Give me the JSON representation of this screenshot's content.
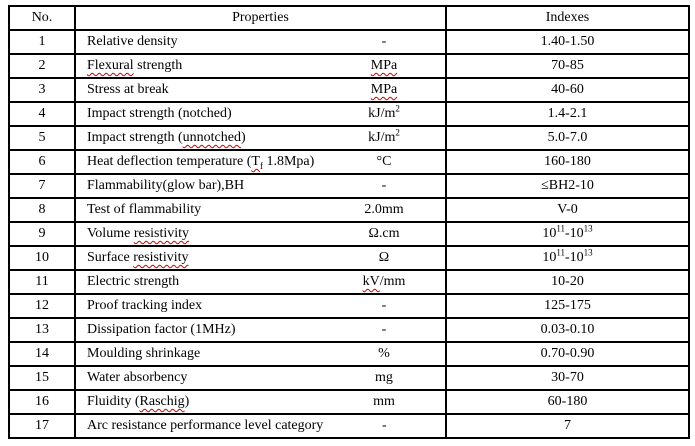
{
  "table": {
    "headers": {
      "no": "No.",
      "properties": "Properties",
      "indexes": "Indexes"
    },
    "squiggle_color": "#cc0000",
    "border_color": "#000000",
    "text_color": "#000000",
    "rows": [
      {
        "no": "1",
        "property": [
          {
            "v": "Relative density"
          }
        ],
        "unit": [
          {
            "v": "-"
          }
        ],
        "index": [
          {
            "v": "1.40-1.50"
          }
        ]
      },
      {
        "no": "2",
        "property": [
          {
            "v": "Flexural",
            "sq": true
          },
          {
            "v": " strength"
          }
        ],
        "unit": [
          {
            "v": "MPa",
            "sq": true
          }
        ],
        "index": [
          {
            "v": "70-85"
          }
        ]
      },
      {
        "no": "3",
        "property": [
          {
            "v": "Stress at break"
          }
        ],
        "unit": [
          {
            "v": "MPa",
            "sq": true
          }
        ],
        "index": [
          {
            "v": "40-60"
          }
        ]
      },
      {
        "no": "4",
        "property": [
          {
            "v": "Impact strength (notched)"
          }
        ],
        "unit": [
          {
            "v": "kJ/m"
          },
          {
            "v": "2",
            "s": "sup"
          }
        ],
        "index": [
          {
            "v": "1.4-2.1"
          }
        ]
      },
      {
        "no": "5",
        "property": [
          {
            "v": "Impact strength ("
          },
          {
            "v": "unnotched",
            "sq": true
          },
          {
            "v": ")"
          }
        ],
        "unit": [
          {
            "v": "kJ/m"
          },
          {
            "v": "2",
            "s": "sup"
          }
        ],
        "index": [
          {
            "v": "5.0-7.0"
          }
        ]
      },
      {
        "no": "6",
        "property": [
          {
            "v": "Heat deflection temperature ("
          },
          {
            "v": "T",
            "sq": true
          },
          {
            "v": "f",
            "s": "sub",
            "sq": true
          },
          {
            "v": " 1.8Mpa)"
          }
        ],
        "unit": [
          {
            "v": "°C"
          }
        ],
        "index": [
          {
            "v": "160-180"
          }
        ]
      },
      {
        "no": "7",
        "property": [
          {
            "v": "Flammability(glow bar),BH"
          }
        ],
        "unit": [
          {
            "v": "-"
          }
        ],
        "index": [
          {
            "v": "≤BH2-10"
          }
        ]
      },
      {
        "no": "8",
        "property": [
          {
            "v": "Test of flammability"
          }
        ],
        "unit": [
          {
            "v": "2.0mm"
          }
        ],
        "index": [
          {
            "v": "V-0"
          }
        ]
      },
      {
        "no": "9",
        "property": [
          {
            "v": "Volume "
          },
          {
            "v": "resistivity",
            "sq": true
          }
        ],
        "unit": [
          {
            "v": "Ω.cm"
          }
        ],
        "index": [
          {
            "v": "10"
          },
          {
            "v": "11",
            "s": "sup"
          },
          {
            "v": "-10"
          },
          {
            "v": "13",
            "s": "sup"
          }
        ]
      },
      {
        "no": "10",
        "property": [
          {
            "v": "Surface "
          },
          {
            "v": "resistivity",
            "sq": true
          }
        ],
        "unit": [
          {
            "v": "Ω"
          }
        ],
        "index": [
          {
            "v": "10"
          },
          {
            "v": "11",
            "s": "sup"
          },
          {
            "v": "-10"
          },
          {
            "v": "13",
            "s": "sup"
          }
        ]
      },
      {
        "no": "11",
        "property": [
          {
            "v": "Electric strength"
          }
        ],
        "unit": [
          {
            "v": "kV",
            "sq": true
          },
          {
            "v": "/mm"
          }
        ],
        "index": [
          {
            "v": "10-20"
          }
        ]
      },
      {
        "no": "12",
        "property": [
          {
            "v": "Proof tracking index"
          }
        ],
        "unit": [
          {
            "v": "-"
          }
        ],
        "index": [
          {
            "v": "125-175"
          }
        ]
      },
      {
        "no": "13",
        "property": [
          {
            "v": "Dissipation factor (1MHz)"
          }
        ],
        "unit": [
          {
            "v": "-"
          }
        ],
        "index": [
          {
            "v": "0.03-0.10"
          }
        ]
      },
      {
        "no": "14",
        "property": [
          {
            "v": "Moulding shrinkage"
          }
        ],
        "unit": [
          {
            "v": "%"
          }
        ],
        "index": [
          {
            "v": "0.70-0.90"
          }
        ]
      },
      {
        "no": "15",
        "property": [
          {
            "v": "Water absorbency"
          }
        ],
        "unit": [
          {
            "v": "mg"
          }
        ],
        "index": [
          {
            "v": "30-70"
          }
        ]
      },
      {
        "no": "16",
        "property": [
          {
            "v": "Fluidity ("
          },
          {
            "v": "Raschig",
            "sq": true
          },
          {
            "v": ")"
          }
        ],
        "unit": [
          {
            "v": "mm"
          }
        ],
        "index": [
          {
            "v": "60-180"
          }
        ]
      },
      {
        "no": "17",
        "property": [
          {
            "v": "Arc resistance performance level category"
          }
        ],
        "unit": [
          {
            "v": "-"
          }
        ],
        "index": [
          {
            "v": "7"
          }
        ]
      }
    ]
  }
}
